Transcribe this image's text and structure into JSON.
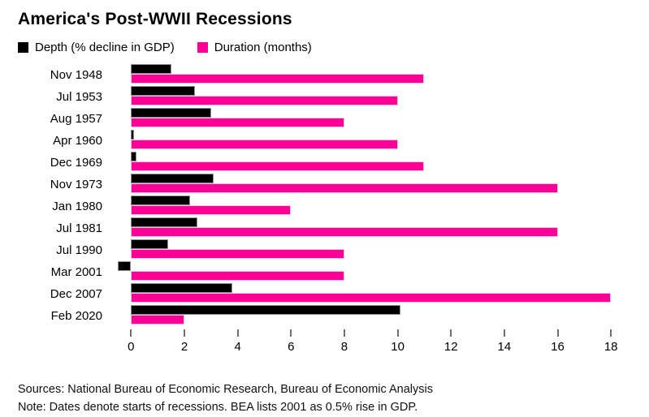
{
  "title": "America's Post-WWII Recessions",
  "legend": [
    {
      "label": "Depth (% decline in GDP)",
      "color": "#000000"
    },
    {
      "label": "Duration (months)",
      "color": "#ff0096"
    }
  ],
  "footer": {
    "sources": "Sources: National Bureau of Economic Research, Bureau of Economic Analysis",
    "note": "Note: Dates denote starts of recessions. BEA lists 2001 as 0.5% rise in GDP."
  },
  "chart_data": {
    "type": "bar",
    "orientation": "horizontal",
    "title": "America's Post-WWII Recessions",
    "categories": [
      "Nov 1948",
      "Jul 1953",
      "Aug 1957",
      "Apr 1960",
      "Dec 1969",
      "Nov 1973",
      "Jan 1980",
      "Jul 1981",
      "Jul 1990",
      "Mar 2001",
      "Dec 2007",
      "Feb 2020"
    ],
    "series": [
      {
        "name": "Depth (% decline in GDP)",
        "color": "#000000",
        "values": [
          1.5,
          2.4,
          3.0,
          0.1,
          0.2,
          3.1,
          2.2,
          2.5,
          1.4,
          -0.5,
          3.8,
          10.1
        ]
      },
      {
        "name": "Duration (months)",
        "color": "#ff0096",
        "values": [
          11,
          10,
          8,
          10,
          11,
          16,
          6,
          16,
          8,
          8,
          18,
          2
        ]
      }
    ],
    "x_ticks": [
      0,
      2,
      4,
      6,
      8,
      10,
      12,
      14,
      16,
      18
    ],
    "xlim": [
      -0.65,
      19.0
    ],
    "grid": false,
    "legend_position": "top",
    "note_negative_bar": "Mar 2001 depth bar extends left of zero (0.5% rise in GDP)"
  }
}
